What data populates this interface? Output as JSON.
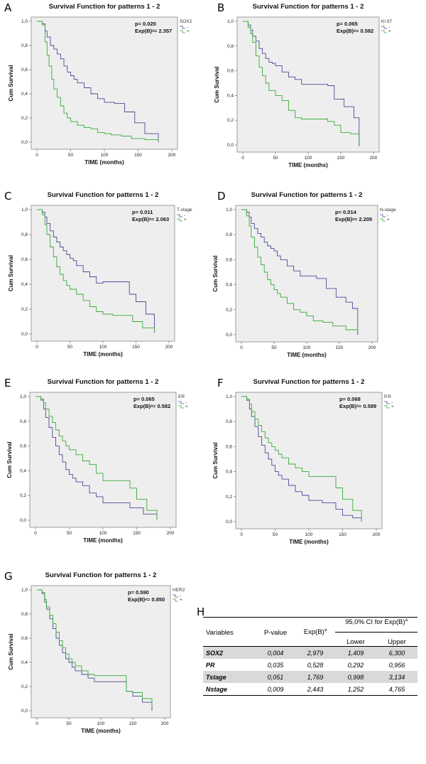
{
  "figure_label_H": "H",
  "chart_data": [
    {
      "panel": "A",
      "type": "line",
      "title": "Survival Function for patterns 1 - 2",
      "xlabel": "TIME (months)",
      "ylabel": "Cum Survival",
      "xlim": [
        0,
        200
      ],
      "ylim": [
        0,
        1
      ],
      "xticks": [
        "0",
        "50",
        "100",
        "150",
        "200"
      ],
      "yticks": [
        "0,0",
        "0,2",
        "0,4",
        "0,6",
        "0,8",
        "1,0"
      ],
      "p_text": "p= 0.020",
      "exp_text": "Exp(B)ᵃ= 2.357",
      "legend_title": "SOX2",
      "series": [
        {
          "name": "-",
          "color": "#4a4a9a",
          "x": [
            0,
            8,
            12,
            15,
            20,
            25,
            30,
            35,
            40,
            45,
            50,
            55,
            60,
            70,
            80,
            90,
            100,
            115,
            130,
            145,
            160,
            180
          ],
          "y": [
            1,
            0.98,
            0.92,
            0.87,
            0.8,
            0.77,
            0.73,
            0.69,
            0.63,
            0.58,
            0.55,
            0.52,
            0.49,
            0.45,
            0.4,
            0.36,
            0.33,
            0.32,
            0.25,
            0.16,
            0.07,
            0.01
          ]
        },
        {
          "name": "+",
          "color": "#3aaa3a",
          "x": [
            0,
            8,
            12,
            15,
            18,
            22,
            25,
            30,
            35,
            40,
            45,
            50,
            60,
            70,
            80,
            90,
            100,
            110,
            125,
            140,
            160,
            180
          ],
          "y": [
            1,
            0.97,
            0.83,
            0.72,
            0.63,
            0.52,
            0.44,
            0.37,
            0.3,
            0.24,
            0.2,
            0.17,
            0.14,
            0.12,
            0.11,
            0.08,
            0.07,
            0.06,
            0.05,
            0.03,
            0.02,
            0.02
          ]
        }
      ]
    },
    {
      "panel": "B",
      "type": "line",
      "title": "Survival Function for patterns 1 - 2",
      "xlabel": "TIME (months)",
      "ylabel": "Cum Survival",
      "xlim": [
        0,
        200
      ],
      "ylim": [
        0,
        1
      ],
      "xticks": [
        "0",
        "50",
        "100",
        "150",
        "200"
      ],
      "yticks": [
        "0,0",
        "0,2",
        "0,4",
        "0,6",
        "0,8",
        "1,0"
      ],
      "p_text": "p= 0.065",
      "exp_text": "Exp(B)ᵃ= 0.582",
      "legend_title": "KI 67",
      "series": [
        {
          "name": "-",
          "color": "#4a4a9a",
          "x": [
            0,
            8,
            12,
            15,
            20,
            25,
            30,
            35,
            40,
            45,
            50,
            60,
            70,
            80,
            90,
            100,
            110,
            130,
            140,
            155,
            170,
            178
          ],
          "y": [
            1,
            0.97,
            0.93,
            0.88,
            0.84,
            0.78,
            0.74,
            0.7,
            0.67,
            0.66,
            0.64,
            0.59,
            0.55,
            0.53,
            0.49,
            0.49,
            0.49,
            0.48,
            0.37,
            0.31,
            0.22,
            0.0
          ]
        },
        {
          "name": "+",
          "color": "#3aaa3a",
          "x": [
            0,
            8,
            12,
            15,
            20,
            25,
            30,
            35,
            40,
            50,
            60,
            70,
            80,
            90,
            100,
            120,
            130,
            140,
            150,
            165,
            178
          ],
          "y": [
            1,
            0.95,
            0.9,
            0.83,
            0.72,
            0.63,
            0.56,
            0.5,
            0.44,
            0.4,
            0.36,
            0.28,
            0.22,
            0.21,
            0.21,
            0.21,
            0.19,
            0.16,
            0.1,
            0.09,
            0.04
          ]
        }
      ]
    },
    {
      "panel": "C",
      "type": "line",
      "title": "Survival Function for patterns 1 - 2",
      "xlabel": "TIME (months)",
      "ylabel": "Cum Survival",
      "xlim": [
        0,
        200
      ],
      "ylim": [
        0,
        1
      ],
      "xticks": [
        "0",
        "50",
        "100",
        "150",
        "200"
      ],
      "yticks": [
        "0,0",
        "0,2",
        "0,4",
        "0,6",
        "0,8",
        "1,0"
      ],
      "p_text": "p= 0.011",
      "exp_text": "Exp(B)ᵃ= 2.063",
      "legend_title": "T-stage",
      "series": [
        {
          "name": "-",
          "color": "#4a4a9a",
          "x": [
            0,
            8,
            12,
            15,
            20,
            25,
            30,
            35,
            40,
            45,
            50,
            55,
            60,
            70,
            80,
            90,
            100,
            120,
            140,
            150,
            165,
            178
          ],
          "y": [
            1,
            0.98,
            0.94,
            0.89,
            0.83,
            0.78,
            0.74,
            0.7,
            0.67,
            0.64,
            0.61,
            0.59,
            0.55,
            0.5,
            0.46,
            0.41,
            0.42,
            0.42,
            0.32,
            0.26,
            0.16,
            0.02
          ]
        },
        {
          "name": "+",
          "color": "#3aaa3a",
          "x": [
            0,
            8,
            12,
            15,
            20,
            25,
            30,
            35,
            40,
            45,
            50,
            60,
            70,
            80,
            90,
            100,
            115,
            130,
            145,
            160,
            178
          ],
          "y": [
            1,
            0.96,
            0.88,
            0.8,
            0.7,
            0.62,
            0.54,
            0.48,
            0.43,
            0.39,
            0.36,
            0.32,
            0.27,
            0.22,
            0.18,
            0.16,
            0.15,
            0.15,
            0.1,
            0.05,
            0.03
          ]
        }
      ]
    },
    {
      "panel": "D",
      "type": "line",
      "title": "Survival Function for patterns 1 - 2",
      "xlabel": "TIME (months)",
      "ylabel": "Cum Survival",
      "xlim": [
        0,
        200
      ],
      "ylim": [
        0,
        1
      ],
      "xticks": [
        "0",
        "50",
        "100",
        "150",
        "200"
      ],
      "yticks": [
        "0,0",
        "0,2",
        "0,4",
        "0,6",
        "0,8",
        "1,0"
      ],
      "p_text": "p= 0.014",
      "exp_text": "Exp(B)ᵃ= 2.205",
      "legend_title": "N-stage",
      "series": [
        {
          "name": "-",
          "color": "#4a4a9a",
          "x": [
            0,
            8,
            12,
            15,
            20,
            25,
            30,
            35,
            40,
            45,
            50,
            55,
            60,
            70,
            80,
            90,
            100,
            115,
            130,
            145,
            160,
            170,
            178
          ],
          "y": [
            1,
            0.98,
            0.94,
            0.89,
            0.85,
            0.81,
            0.78,
            0.74,
            0.71,
            0.69,
            0.67,
            0.63,
            0.6,
            0.55,
            0.51,
            0.47,
            0.47,
            0.45,
            0.37,
            0.3,
            0.26,
            0.21,
            0.01
          ]
        },
        {
          "name": "+",
          "color": "#3aaa3a",
          "x": [
            0,
            8,
            12,
            15,
            20,
            25,
            30,
            35,
            40,
            45,
            50,
            55,
            60,
            70,
            80,
            90,
            100,
            110,
            125,
            140,
            160,
            178
          ],
          "y": [
            1,
            0.95,
            0.87,
            0.78,
            0.7,
            0.62,
            0.56,
            0.5,
            0.44,
            0.4,
            0.36,
            0.33,
            0.3,
            0.25,
            0.2,
            0.18,
            0.15,
            0.11,
            0.1,
            0.07,
            0.04,
            0.04
          ]
        }
      ]
    },
    {
      "panel": "E",
      "type": "line",
      "title": "Survival Function for patterns 1 - 2",
      "xlabel": "TIME (months)",
      "ylabel": "Cum Survival",
      "xlim": [
        0,
        200
      ],
      "ylim": [
        0,
        1
      ],
      "xticks": [
        "0",
        "50",
        "100",
        "150",
        "200"
      ],
      "yticks": [
        "0,0",
        "0,2",
        "0,4",
        "0,6",
        "0,8",
        "1,0"
      ],
      "p_text": "p= 0.065",
      "exp_text": "Exp(B)ᵃ= 0.582",
      "legend_title": "ER",
      "series": [
        {
          "name": "-",
          "color": "#4a4a9a",
          "x": [
            0,
            8,
            12,
            15,
            20,
            25,
            30,
            35,
            40,
            45,
            50,
            55,
            60,
            70,
            80,
            90,
            100,
            120,
            140,
            160,
            180
          ],
          "y": [
            1,
            0.97,
            0.9,
            0.83,
            0.75,
            0.67,
            0.6,
            0.53,
            0.47,
            0.41,
            0.37,
            0.34,
            0.31,
            0.28,
            0.22,
            0.19,
            0.14,
            0.14,
            0.1,
            0.05,
            0.02
          ]
        },
        {
          "name": "+",
          "color": "#3aaa3a",
          "x": [
            0,
            8,
            12,
            15,
            20,
            25,
            30,
            35,
            40,
            45,
            50,
            60,
            70,
            80,
            90,
            100,
            120,
            140,
            150,
            165,
            180
          ],
          "y": [
            1,
            0.98,
            0.95,
            0.9,
            0.84,
            0.79,
            0.73,
            0.68,
            0.64,
            0.6,
            0.57,
            0.53,
            0.48,
            0.45,
            0.38,
            0.32,
            0.32,
            0.26,
            0.17,
            0.08,
            0.01
          ]
        }
      ]
    },
    {
      "panel": "F",
      "type": "line",
      "title": "Survival Function for patterns 1 - 2",
      "xlabel": "TIME (months)",
      "ylabel": "Cum Survival",
      "xlim": [
        0,
        200
      ],
      "ylim": [
        0,
        1
      ],
      "xticks": [
        "0",
        "50",
        "100",
        "150",
        "200"
      ],
      "yticks": [
        "0,0",
        "0,2",
        "0,4",
        "0,6",
        "0,8",
        "1,0"
      ],
      "p_text": "p= 0.068",
      "exp_text": "Exp(B)ᵃ= 0.589",
      "legend_title": "P.R",
      "series": [
        {
          "name": "-",
          "color": "#4a4a9a",
          "x": [
            0,
            8,
            12,
            15,
            20,
            25,
            30,
            35,
            40,
            45,
            50,
            55,
            60,
            70,
            80,
            90,
            100,
            120,
            140,
            150,
            165,
            178
          ],
          "y": [
            1,
            0.97,
            0.9,
            0.84,
            0.76,
            0.68,
            0.61,
            0.55,
            0.5,
            0.45,
            0.4,
            0.37,
            0.34,
            0.29,
            0.24,
            0.21,
            0.17,
            0.15,
            0.1,
            0.05,
            0.03,
            0.01
          ]
        },
        {
          "name": "+",
          "color": "#3aaa3a",
          "x": [
            0,
            8,
            12,
            15,
            20,
            25,
            30,
            35,
            40,
            45,
            50,
            55,
            60,
            70,
            80,
            90,
            100,
            120,
            140,
            150,
            165,
            178
          ],
          "y": [
            1,
            0.98,
            0.94,
            0.88,
            0.82,
            0.77,
            0.72,
            0.67,
            0.63,
            0.6,
            0.57,
            0.54,
            0.51,
            0.46,
            0.43,
            0.4,
            0.36,
            0.36,
            0.27,
            0.18,
            0.09,
            0.01
          ]
        }
      ]
    },
    {
      "panel": "G",
      "type": "line",
      "title": "Survival Function for patterns 1 - 2",
      "xlabel": "TIME (months)",
      "ylabel": "Cum Survival",
      "xlim": [
        0,
        200
      ],
      "ylim": [
        0,
        1
      ],
      "xticks": [
        "0",
        "50",
        "100",
        "150",
        "200"
      ],
      "yticks": [
        "0,0",
        "0,2",
        "0,4",
        "0,6",
        "0,8",
        "1,0"
      ],
      "p_text": "p= 0.590",
      "exp_text": "Exp(B)ᵃ= 0.850",
      "legend_title": "HER2",
      "series": [
        {
          "name": "-",
          "color": "#4a4a9a",
          "x": [
            0,
            8,
            12,
            15,
            20,
            25,
            30,
            35,
            40,
            45,
            50,
            55,
            60,
            70,
            80,
            90,
            100,
            120,
            140,
            150,
            165,
            180
          ],
          "y": [
            1,
            0.97,
            0.9,
            0.84,
            0.76,
            0.68,
            0.6,
            0.54,
            0.48,
            0.43,
            0.4,
            0.36,
            0.33,
            0.3,
            0.27,
            0.24,
            0.24,
            0.24,
            0.16,
            0.12,
            0.07,
            0.01
          ]
        },
        {
          "name": "+",
          "color": "#3aaa3a",
          "x": [
            0,
            8,
            12,
            15,
            20,
            25,
            30,
            35,
            40,
            45,
            50,
            55,
            60,
            70,
            80,
            90,
            100,
            120,
            140,
            150,
            165,
            180
          ],
          "y": [
            1,
            0.98,
            0.92,
            0.86,
            0.79,
            0.72,
            0.65,
            0.58,
            0.52,
            0.47,
            0.43,
            0.4,
            0.37,
            0.33,
            0.3,
            0.29,
            0.29,
            0.29,
            0.16,
            0.15,
            0.1,
            0.04
          ]
        }
      ]
    }
  ],
  "table": {
    "headers": {
      "variables": "Variables",
      "pvalue": "P-value",
      "expb": "Exp(B)",
      "ci": "95,0% CI for Exp(B)",
      "lower": "Lower",
      "upper": "Upper",
      "sup": "a"
    },
    "rows": [
      {
        "variable": "SOX2",
        "p": "0,004",
        "exp": "2,979",
        "lower": "1,409",
        "upper": "6,300"
      },
      {
        "variable": "PR",
        "p": "0,035",
        "exp": "0,528",
        "lower": "0,292",
        "upper": "0,956"
      },
      {
        "variable": "Tstage",
        "p": "0,051",
        "exp": "1,769",
        "lower": "0,998",
        "upper": "3,134"
      },
      {
        "variable": "Nstage",
        "p": "0,009",
        "exp": "2,443",
        "lower": "1,252",
        "upper": "4,765"
      }
    ]
  }
}
